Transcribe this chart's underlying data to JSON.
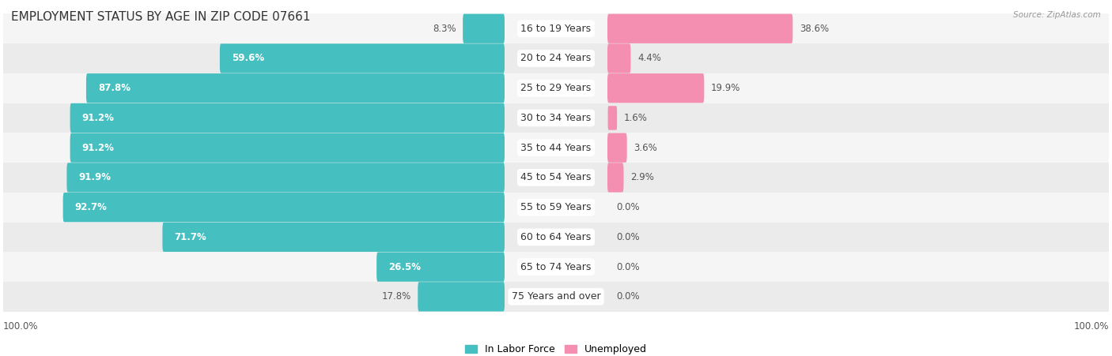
{
  "title": "EMPLOYMENT STATUS BY AGE IN ZIP CODE 07661",
  "source": "Source: ZipAtlas.com",
  "categories": [
    "16 to 19 Years",
    "20 to 24 Years",
    "25 to 29 Years",
    "30 to 34 Years",
    "35 to 44 Years",
    "45 to 54 Years",
    "55 to 59 Years",
    "60 to 64 Years",
    "65 to 74 Years",
    "75 Years and over"
  ],
  "labor_force": [
    8.3,
    59.6,
    87.8,
    91.2,
    91.2,
    91.9,
    92.7,
    71.7,
    26.5,
    17.8
  ],
  "unemployed": [
    38.6,
    4.4,
    19.9,
    1.6,
    3.6,
    2.9,
    0.0,
    0.0,
    0.0,
    0.0
  ],
  "labor_force_color": "#45bfbf",
  "unemployed_color": "#f48fb1",
  "row_bg_even": "#f5f5f5",
  "row_bg_odd": "#ebebeb",
  "title_fontsize": 11,
  "label_fontsize": 9,
  "value_fontsize": 8.5,
  "legend_fontsize": 9,
  "axis_label_left": "100.0%",
  "axis_label_right": "100.0%",
  "max_val": 100
}
